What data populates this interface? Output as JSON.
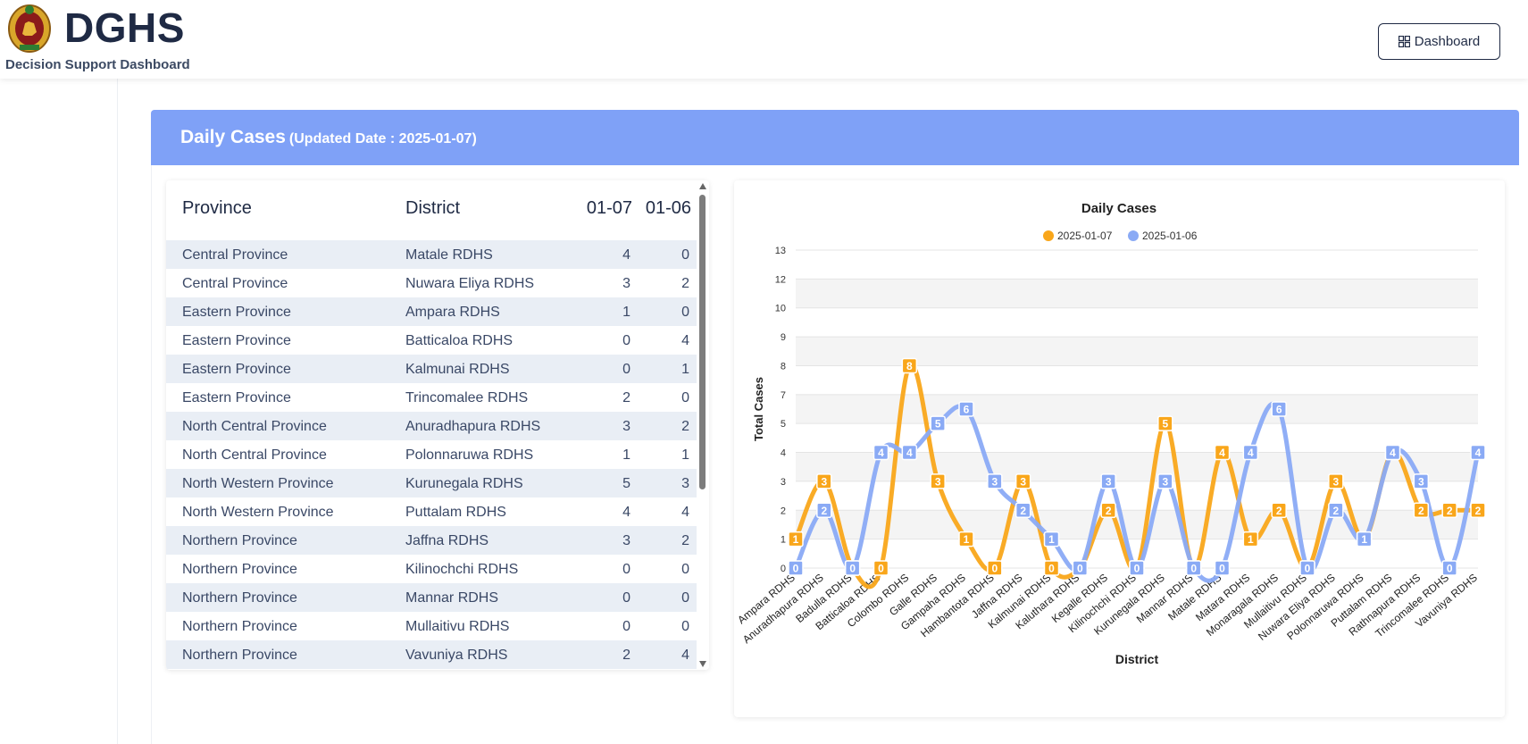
{
  "header": {
    "brand_title": "DGHS",
    "brand_subtitle": "Decision Support Dashboard",
    "dashboard_button": "Dashboard"
  },
  "card": {
    "title": "Daily Cases",
    "updated": "(Updated Date : 2025-01-07)"
  },
  "table": {
    "headers": {
      "province": "Province",
      "district": "District",
      "col1": "01-07",
      "col2": "01-06"
    },
    "rows": [
      {
        "province": "Central Province",
        "district": "Matale RDHS",
        "v1": "4",
        "v2": "0"
      },
      {
        "province": "Central Province",
        "district": "Nuwara Eliya RDHS",
        "v1": "3",
        "v2": "2"
      },
      {
        "province": "Eastern Province",
        "district": "Ampara RDHS",
        "v1": "1",
        "v2": "0"
      },
      {
        "province": "Eastern Province",
        "district": "Batticaloa RDHS",
        "v1": "0",
        "v2": "4"
      },
      {
        "province": "Eastern Province",
        "district": "Kalmunai RDHS",
        "v1": "0",
        "v2": "1"
      },
      {
        "province": "Eastern Province",
        "district": "Trincomalee RDHS",
        "v1": "2",
        "v2": "0"
      },
      {
        "province": "North Central Province",
        "district": "Anuradhapura RDHS",
        "v1": "3",
        "v2": "2"
      },
      {
        "province": "North Central Province",
        "district": "Polonnaruwa RDHS",
        "v1": "1",
        "v2": "1"
      },
      {
        "province": "North Western Province",
        "district": "Kurunegala RDHS",
        "v1": "5",
        "v2": "3"
      },
      {
        "province": "North Western Province",
        "district": "Puttalam RDHS",
        "v1": "4",
        "v2": "4"
      },
      {
        "province": "Northern Province",
        "district": "Jaffna RDHS",
        "v1": "3",
        "v2": "2"
      },
      {
        "province": "Northern Province",
        "district": "Kilinochchi RDHS",
        "v1": "0",
        "v2": "0"
      },
      {
        "province": "Northern Province",
        "district": "Mannar RDHS",
        "v1": "0",
        "v2": "0"
      },
      {
        "province": "Northern Province",
        "district": "Mullaitivu RDHS",
        "v1": "0",
        "v2": "0"
      },
      {
        "province": "Northern Province",
        "district": "Vavuniya RDHS",
        "v1": "2",
        "v2": "4"
      }
    ]
  },
  "colors": {
    "header_bg": "#7fa1f7",
    "series1": "#f9a61a",
    "series2": "#8aaaf5"
  },
  "chart_data": {
    "type": "line",
    "title": "Daily Cases",
    "xlabel": "District",
    "ylabel": "Total Cases",
    "y_ticks": [
      0,
      1,
      2,
      3,
      4,
      5,
      7,
      8,
      9,
      10,
      12,
      13
    ],
    "legend_position": "top-center",
    "grid": true,
    "categories": [
      "Ampara RDHS",
      "Anuradhapura RDHS",
      "Badulla RDHS",
      "Batticaloa RDHS",
      "Colombo RDHS",
      "Galle RDHS",
      "Gampaha RDHS",
      "Hambantota RDHS",
      "Jaffna RDHS",
      "Kalmunai RDHS",
      "Kaluthara RDHS",
      "Kegalle RDHS",
      "Kilinochchi RDHS",
      "Kurunegala RDHS",
      "Mannar RDHS",
      "Matale RDHS",
      "Matara RDHS",
      "Monaragala RDHS",
      "Mullaitivu RDHS",
      "Nuwara Eliya RDHS",
      "Polonnaruwa RDHS",
      "Puttalam RDHS",
      "Rathnapura RDHS",
      "Trincomalee RDHS",
      "Vavuniya RDHS"
    ],
    "series": [
      {
        "name": "2025-01-07",
        "color": "#f9a61a",
        "values": [
          1,
          3,
          0,
          0,
          8,
          3,
          1,
          0,
          3,
          0,
          0,
          2,
          0,
          5,
          0,
          4,
          1,
          2,
          0,
          3,
          1,
          4,
          2,
          2,
          2
        ]
      },
      {
        "name": "2025-01-06",
        "color": "#8aaaf5",
        "values": [
          0,
          2,
          0,
          4,
          4,
          5,
          6,
          3,
          2,
          1,
          0,
          3,
          0,
          3,
          0,
          0,
          4,
          6,
          0,
          2,
          1,
          4,
          3,
          0,
          4
        ]
      }
    ]
  }
}
